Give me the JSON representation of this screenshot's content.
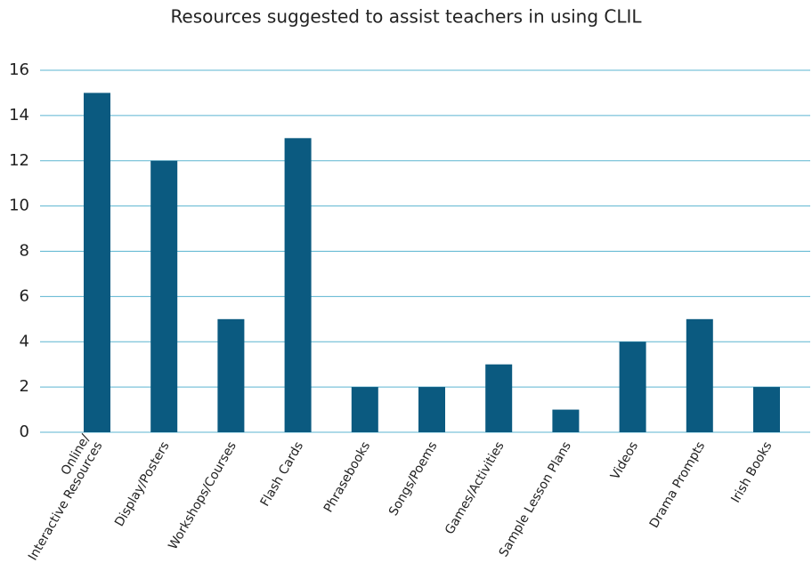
{
  "chart_data": {
    "type": "bar",
    "title": "Resources suggested to assist teachers in using CLIL",
    "categories": [
      "Online/\nInteractive Resources",
      "Display/Posters",
      "Workshops/Courses",
      "Flash Cards",
      "Phrasebooks",
      "Songs/Poems",
      "Games/Activities",
      "Sample Lesson Plans",
      "Videos",
      "Drama Prompts",
      "Irish Books"
    ],
    "values": [
      15,
      12,
      5,
      13,
      2,
      2,
      3,
      1,
      4,
      5,
      2
    ],
    "color": "#0b5a80",
    "ylim": [
      0,
      16
    ],
    "yticks": [
      0,
      2,
      4,
      6,
      8,
      10,
      12,
      14,
      16
    ],
    "grid": true
  }
}
